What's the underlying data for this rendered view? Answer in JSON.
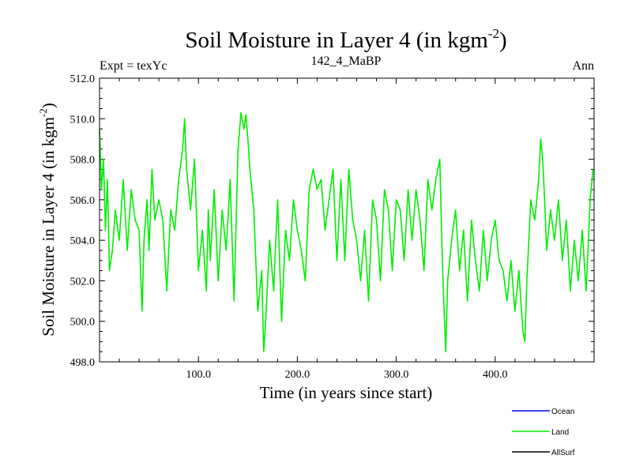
{
  "chart_data": {
    "type": "line",
    "title": "Soil Moisture in Layer 4 (in kgm",
    "title_sup": "-2",
    "title_end": ")",
    "subtitle_left": "Expt = texYc",
    "subtitle_center": "142_4_MaBP",
    "subtitle_right": "Ann",
    "xlabel": "Time (in years since start)",
    "ylabel": "Soil Moisture in Layer 4 (in kgm",
    "ylabel_sup": "-2",
    "ylabel_end": ")",
    "xlim": [
      0,
      500
    ],
    "ylim": [
      498.0,
      512.0
    ],
    "xticks": [
      100,
      200,
      300,
      400
    ],
    "xtick_labels": [
      "100.0",
      "200.0",
      "300.0",
      "400.0"
    ],
    "yticks": [
      498,
      500,
      502,
      504,
      506,
      508,
      510,
      512
    ],
    "ytick_labels": [
      "498.0",
      "500.0",
      "502.0",
      "504.0",
      "506.0",
      "508.0",
      "510.0",
      "512.0"
    ],
    "legend_placement": "bottom-right, outside plot",
    "series": [
      {
        "name": "Ocean",
        "color": "#0000ff",
        "values": []
      },
      {
        "name": "Land",
        "color": "#00ee00",
        "x": [
          0,
          2,
          4,
          6,
          8,
          10,
          13,
          16,
          20,
          24,
          28,
          32,
          36,
          40,
          43,
          45,
          48,
          50,
          53,
          56,
          60,
          64,
          68,
          72,
          76,
          80,
          84,
          86,
          88,
          92,
          96,
          100,
          104,
          108,
          110,
          112,
          116,
          120,
          124,
          128,
          132,
          136,
          140,
          143,
          146,
          148,
          150,
          152,
          156,
          160,
          164,
          166,
          168,
          172,
          176,
          180,
          184,
          188,
          192,
          196,
          200,
          204,
          208,
          212,
          216,
          220,
          224,
          228,
          232,
          236,
          240,
          244,
          248,
          252,
          256,
          260,
          264,
          268,
          272,
          276,
          280,
          284,
          288,
          292,
          296,
          300,
          304,
          308,
          312,
          316,
          320,
          324,
          328,
          332,
          336,
          340,
          344,
          346,
          348,
          350,
          352,
          356,
          360,
          364,
          368,
          372,
          376,
          380,
          384,
          388,
          392,
          396,
          400,
          404,
          408,
          412,
          416,
          420,
          424,
          428,
          430,
          432,
          436,
          440,
          444,
          446,
          448,
          450,
          452,
          456,
          460,
          464,
          468,
          472,
          476,
          480,
          484,
          488,
          492,
          496,
          499
        ],
        "values": [
          509.5,
          506.5,
          508.0,
          504.5,
          507.0,
          502.5,
          503.5,
          505.5,
          504.0,
          507.0,
          503.5,
          506.5,
          505.0,
          504.5,
          500.5,
          504.0,
          506.0,
          503.5,
          507.5,
          505.0,
          506.0,
          505.0,
          501.5,
          505.5,
          504.5,
          507.0,
          508.5,
          510.0,
          507.5,
          505.5,
          508.0,
          502.5,
          504.5,
          501.5,
          505.5,
          503.0,
          506.5,
          502.0,
          505.5,
          503.5,
          507.0,
          501.0,
          508.5,
          510.3,
          509.5,
          510.2,
          509.0,
          507.5,
          505.5,
          500.5,
          502.5,
          498.5,
          500.0,
          504.0,
          501.5,
          506.0,
          500.0,
          504.5,
          503.0,
          506.0,
          504.5,
          503.5,
          502.0,
          506.5,
          507.5,
          506.5,
          507.0,
          504.5,
          506.0,
          507.5,
          503.0,
          507.0,
          503.0,
          507.5,
          505.0,
          504.0,
          502.0,
          504.5,
          501.0,
          506.0,
          505.0,
          502.0,
          506.5,
          505.5,
          502.5,
          506.0,
          505.5,
          503.0,
          506.5,
          504.0,
          506.5,
          505.0,
          502.5,
          507.0,
          505.5,
          507.0,
          508.0,
          504.0,
          501.0,
          498.5,
          502.0,
          504.0,
          505.5,
          502.5,
          504.5,
          501.0,
          505.0,
          503.0,
          501.5,
          504.5,
          502.0,
          504.0,
          505.0,
          503.0,
          502.5,
          501.0,
          503.0,
          500.5,
          502.5,
          499.5,
          499.0,
          502.0,
          506.0,
          505.0,
          507.0,
          509.0,
          508.0,
          506.0,
          503.5,
          505.5,
          504.0,
          506.0,
          503.0,
          505.0,
          501.5,
          504.0,
          502.0,
          504.5,
          501.5,
          506.0,
          507.5
        ]
      },
      {
        "name": "AllSurf",
        "color": "#000000",
        "values": []
      }
    ]
  }
}
